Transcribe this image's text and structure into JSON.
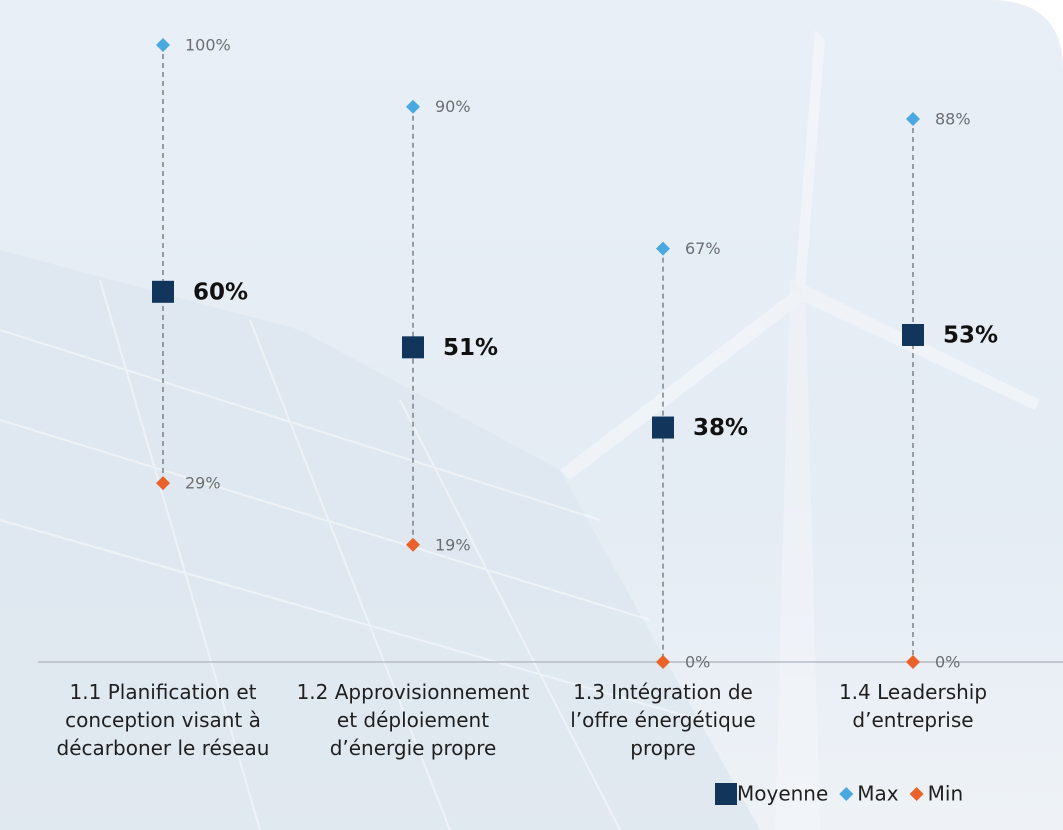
{
  "chart_data": {
    "type": "range",
    "categories": [
      "1.1 Planification et conception visant à décarboner le réseau",
      "1.2 Approvisionnement et déploiement d’énergie propre",
      "1.3 Intégration de l’offre énergétique propre",
      "1.4 Leadership d’entreprise"
    ],
    "series": [
      {
        "name": "Moyenne",
        "color": "#12355b",
        "marker": "square",
        "values": [
          60,
          51,
          38,
          53
        ],
        "value_labels": [
          "60%",
          "51%",
          "38%",
          "53%"
        ]
      },
      {
        "name": "Max",
        "color": "#4aa8e0",
        "marker": "diamond",
        "values": [
          100,
          90,
          67,
          88
        ],
        "value_labels": [
          "100%",
          "90%",
          "67%",
          "88%"
        ]
      },
      {
        "name": "Min",
        "color": "#e8622a",
        "marker": "diamond",
        "values": [
          29,
          19,
          0,
          0
        ],
        "value_labels": [
          "29%",
          "19%",
          "0%",
          "0%"
        ]
      }
    ],
    "legend": "bottom-right"
  }
}
